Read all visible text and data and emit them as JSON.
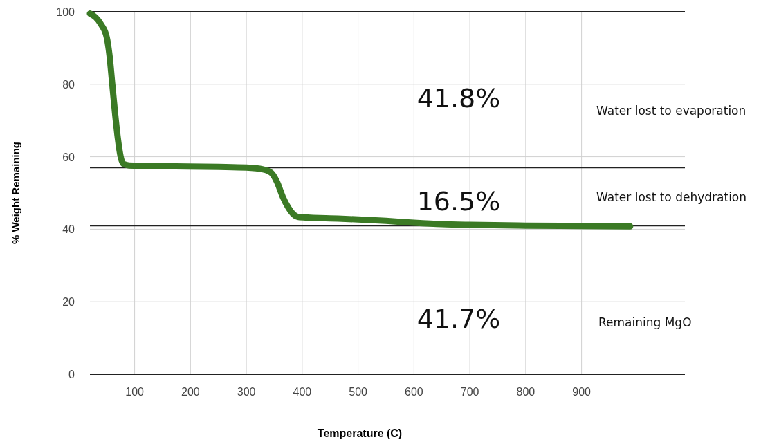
{
  "chart_data": {
    "type": "line",
    "xlabel": "Temperature (C)",
    "ylabel": "% Weight Remaining",
    "x": [
      20,
      30,
      40,
      50,
      55,
      60,
      65,
      70,
      75,
      80,
      90,
      150,
      250,
      300,
      330,
      345,
      355,
      365,
      375,
      385,
      395,
      450,
      500,
      550,
      600,
      650,
      700,
      800,
      900,
      987
    ],
    "series": [
      {
        "color": "#3b7a25",
        "values": [
          99.5,
          98.5,
          96.5,
          93,
          88,
          80,
          72,
          65,
          60,
          58,
          57.6,
          57.4,
          57.2,
          57,
          56.5,
          55.5,
          53,
          49,
          46,
          44,
          43.3,
          43,
          42.7,
          42.3,
          41.8,
          41.4,
          41.2,
          41,
          40.9,
          40.8
        ]
      }
    ],
    "xlim": [
      20,
      1085
    ],
    "ylim": [
      0,
      100
    ],
    "xticks": [
      100,
      200,
      300,
      400,
      500,
      600,
      700,
      800,
      900
    ],
    "yticks": [
      0,
      20,
      40,
      60,
      80,
      100
    ],
    "grid": true,
    "marker": "none",
    "line_style": "solid",
    "ref_lines": [
      {
        "axis": "y",
        "value": 100,
        "color": "#222222"
      },
      {
        "axis": "y",
        "value": 57,
        "color": "#222222"
      },
      {
        "axis": "y",
        "value": 41,
        "color": "#222222"
      }
    ],
    "annotations": [
      "41.8%",
      "16.5%",
      "41.7%",
      "Water lost to evaporation",
      "Water lost to dehydration",
      "Remaining MgO"
    ]
  }
}
